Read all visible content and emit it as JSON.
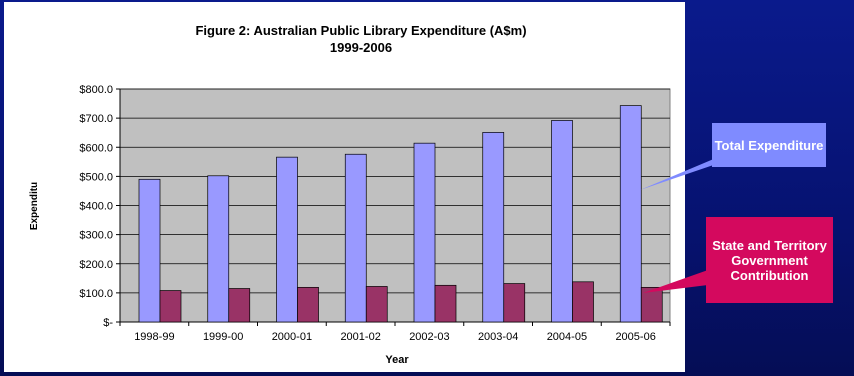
{
  "chart_data": {
    "type": "bar",
    "title": "Figure 2: Australian Public Library Expenditure (A$m)",
    "subtitle": "1999-2006",
    "xlabel": "Year",
    "ylabel": "Expenditu",
    "categories": [
      "1998-99",
      "1999-00",
      "2000-01",
      "2001-02",
      "2002-03",
      "2003-04",
      "2004-05",
      "2005-06"
    ],
    "ylim": [
      0,
      800
    ],
    "yticks": [
      0,
      100,
      200,
      300,
      400,
      500,
      600,
      700,
      800
    ],
    "ytick_labels": [
      "$-",
      "$100.0",
      "$200.0",
      "$300.0",
      "$400.0",
      "$500.0",
      "$600.0",
      "$700.0",
      "$800.0"
    ],
    "grid": true,
    "series": [
      {
        "name": "Total Expenditure",
        "color": "#9999ff",
        "values": [
          490,
          502,
          566,
          576,
          614,
          651,
          692,
          743
        ]
      },
      {
        "name": "State and Territory Government Contribution",
        "color": "#993366",
        "values": [
          108,
          115,
          119,
          122,
          126,
          132,
          138,
          119
        ]
      }
    ],
    "plot_background": "#c0c0c0"
  },
  "callouts": {
    "total": "Total Expenditure",
    "state": "State and Territory Government Contribution"
  }
}
